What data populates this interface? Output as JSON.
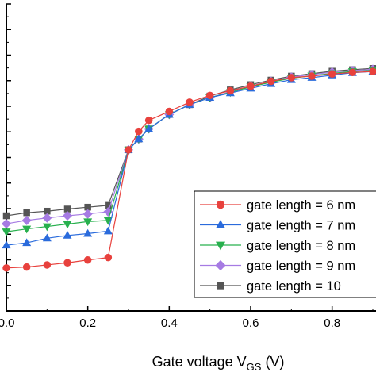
{
  "chart_data": {
    "type": "line",
    "title": "",
    "xlabel": "Gate voltage V",
    "xlabel_sub": "GS",
    "xlabel_unit": " (V)",
    "ylabel": "",
    "xlim": [
      0.0,
      0.9
    ],
    "ylim": [
      0,
      100
    ],
    "y_tick_labels_visible": false,
    "x_ticks": [
      {
        "value": 0.0,
        "label": "0.0"
      },
      {
        "value": 0.2,
        "label": "0.2"
      },
      {
        "value": 0.4,
        "label": "0.4"
      },
      {
        "value": 0.6,
        "label": "0.6"
      },
      {
        "value": 0.8,
        "label": "0.8"
      }
    ],
    "grid": false,
    "legend_position": "bottom-right",
    "x": [
      0.0,
      0.05,
      0.1,
      0.15,
      0.2,
      0.25,
      0.3,
      0.325,
      0.35,
      0.4,
      0.45,
      0.5,
      0.55,
      0.6,
      0.65,
      0.7,
      0.75,
      0.8,
      0.85,
      0.9
    ],
    "series": [
      {
        "name": "gate length = 6 nm",
        "color": "#e8413d",
        "marker": "circle",
        "values": [
          14.0,
          14.3,
          15.0,
          15.7,
          16.6,
          17.4,
          52.5,
          58.5,
          62.1,
          65.0,
          68.0,
          70.2,
          71.7,
          73.2,
          74.8,
          76.0,
          76.5,
          77.2,
          77.7,
          78.0
        ]
      },
      {
        "name": "gate length = 7 nm",
        "color": "#2a6bdc",
        "marker": "triangle-up",
        "values": [
          21.4,
          22.2,
          23.7,
          24.6,
          25.2,
          26.0,
          52.5,
          56.0,
          59.3,
          64.0,
          67.2,
          69.5,
          71.0,
          72.5,
          74.0,
          75.3,
          76.0,
          76.8,
          77.6,
          78.0
        ]
      },
      {
        "name": "gate length = 8 nm",
        "color": "#28b04e",
        "marker": "triangle-down",
        "values": [
          25.8,
          26.7,
          27.5,
          28.3,
          29.1,
          29.5,
          52.5,
          56.0,
          59.3,
          64.0,
          67.2,
          69.5,
          71.2,
          73.0,
          74.5,
          75.8,
          76.6,
          77.4,
          78.0,
          78.4
        ]
      },
      {
        "name": "gate length = 9 nm",
        "color": "#a67be3",
        "marker": "diamond",
        "values": [
          28.4,
          29.5,
          30.3,
          31.0,
          31.6,
          32.3,
          52.5,
          56.0,
          59.3,
          64.0,
          67.2,
          69.5,
          71.4,
          73.3,
          74.8,
          76.2,
          77.0,
          77.8,
          78.3,
          78.7
        ]
      },
      {
        "name": "gate length = 10",
        "color": "#555555",
        "marker": "square",
        "values": [
          31.0,
          32.0,
          32.5,
          33.2,
          33.8,
          34.4,
          52.5,
          56.0,
          59.3,
          64.0,
          67.2,
          70.0,
          72.0,
          73.7,
          75.2,
          76.5,
          77.3,
          78.1,
          78.6,
          79.0
        ]
      }
    ]
  }
}
